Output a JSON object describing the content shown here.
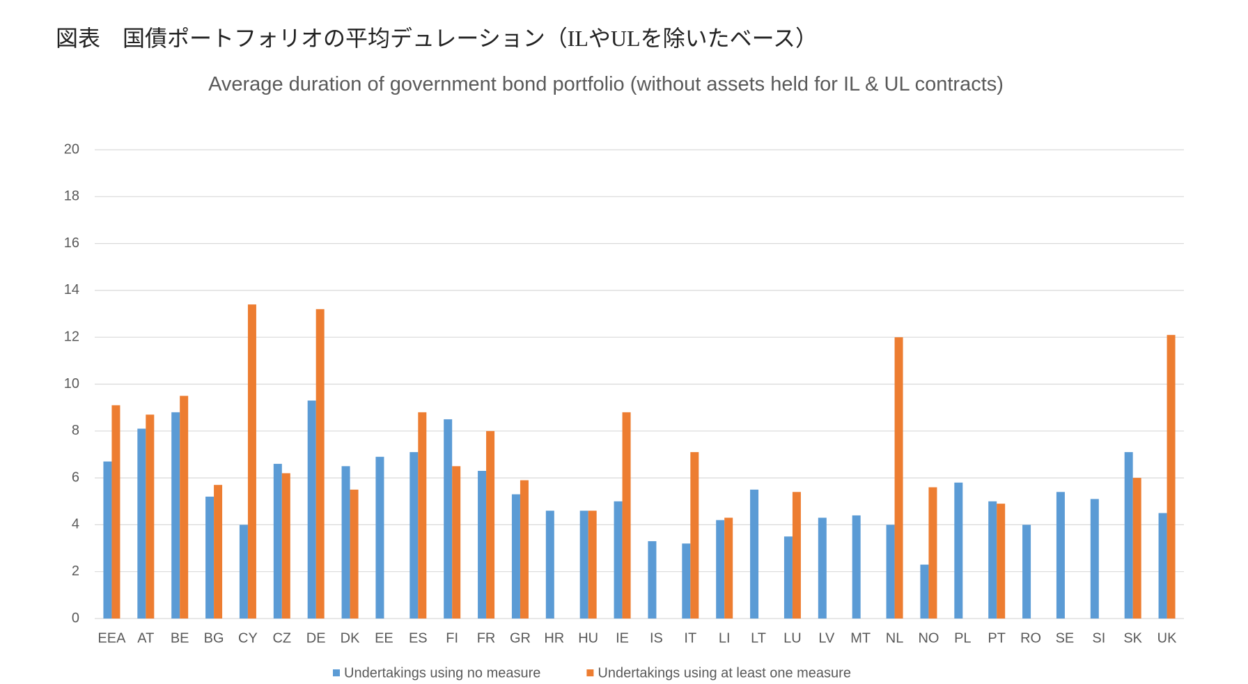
{
  "chart_data": {
    "type": "bar",
    "caption": "図表　国債ポートフォリオの平均デュレーション（ILやULを除いたベース）",
    "title": "Average duration of government bond portfolio  (without assets held for IL & UL contracts)",
    "categories": [
      "EEA",
      "AT",
      "BE",
      "BG",
      "CY",
      "CZ",
      "DE",
      "DK",
      "EE",
      "ES",
      "FI",
      "FR",
      "GR",
      "HR",
      "HU",
      "IE",
      "IS",
      "IT",
      "LI",
      "LT",
      "LU",
      "LV",
      "MT",
      "NL",
      "NO",
      "PL",
      "PT",
      "RO",
      "SE",
      "SI",
      "SK",
      "UK"
    ],
    "series": [
      {
        "name": "Undertakings using no measure",
        "color": "#5b9bd5",
        "values": [
          6.7,
          8.1,
          8.8,
          5.2,
          4.0,
          6.6,
          9.3,
          6.5,
          6.9,
          7.1,
          8.5,
          6.3,
          5.3,
          4.6,
          4.6,
          5.0,
          3.3,
          3.2,
          4.2,
          5.5,
          3.5,
          4.3,
          4.4,
          4.0,
          2.3,
          5.8,
          5.0,
          4.0,
          5.4,
          5.1,
          7.1,
          4.5
        ]
      },
      {
        "name": "Undertakings using at least one measure",
        "color": "#ed7d31",
        "values": [
          9.1,
          8.7,
          9.5,
          5.7,
          13.4,
          6.2,
          13.2,
          5.5,
          null,
          8.8,
          6.5,
          8.0,
          5.9,
          null,
          4.6,
          8.8,
          null,
          7.1,
          4.3,
          null,
          5.4,
          null,
          null,
          12.0,
          5.6,
          null,
          4.9,
          null,
          null,
          null,
          6.0,
          12.1
        ]
      }
    ],
    "ylim": [
      0,
      20
    ],
    "yticks": [
      0,
      2,
      4,
      6,
      8,
      10,
      12,
      14,
      16,
      18,
      20
    ],
    "grid": true,
    "legend": "bottom"
  }
}
